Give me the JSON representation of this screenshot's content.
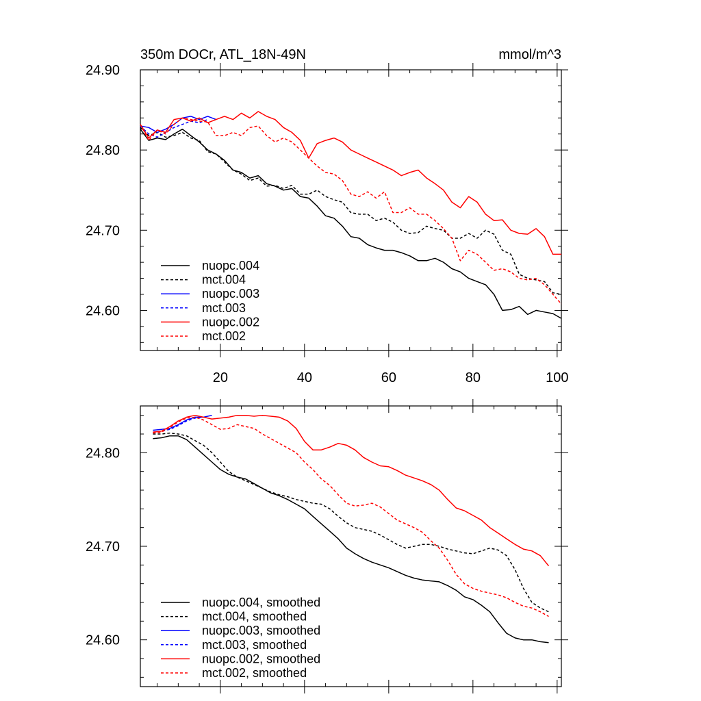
{
  "chart_data": [
    {
      "type": "line",
      "title": "350m DOCr, ATL_18N-49N",
      "units": "mmol/m^3",
      "xlim": [
        1,
        101
      ],
      "ylim": [
        24.55,
        24.9
      ],
      "x_ticks": [
        20,
        40,
        60,
        80,
        100
      ],
      "x_tick_labels": [
        "20",
        "40",
        "60",
        "80",
        "100"
      ],
      "y_ticks": [
        24.6,
        24.7,
        24.8,
        24.9
      ],
      "y_tick_labels": [
        "24.60",
        "24.70",
        "24.80",
        "24.90"
      ],
      "legend": "bottom-left",
      "series": [
        {
          "name": "nuopc.004",
          "color": "#000000",
          "dash": false,
          "x": [
            1,
            3,
            5,
            7,
            9,
            11,
            13,
            15,
            17,
            19,
            21,
            23,
            25,
            27,
            29,
            31,
            33,
            35,
            37,
            39,
            41,
            43,
            45,
            47,
            49,
            51,
            53,
            55,
            57,
            59,
            61,
            63,
            65,
            67,
            69,
            71,
            73,
            75,
            77,
            79,
            81,
            83,
            85,
            87,
            89,
            91,
            93,
            95,
            97,
            99,
            101
          ],
          "y": [
            24.826,
            24.812,
            24.815,
            24.813,
            24.82,
            24.826,
            24.818,
            24.81,
            24.8,
            24.795,
            24.787,
            24.775,
            24.772,
            24.765,
            24.768,
            24.758,
            24.755,
            24.75,
            24.752,
            24.742,
            24.74,
            24.73,
            24.718,
            24.715,
            24.705,
            24.692,
            24.69,
            24.682,
            24.678,
            24.675,
            24.675,
            24.672,
            24.668,
            24.662,
            24.662,
            24.665,
            24.66,
            24.652,
            24.648,
            24.64,
            24.636,
            24.632,
            24.62,
            24.6,
            24.601,
            24.605,
            24.595,
            24.6,
            24.598,
            24.596,
            24.59
          ]
        },
        {
          "name": "mct.004",
          "color": "#000000",
          "dash": true,
          "x": [
            1,
            3,
            5,
            7,
            9,
            11,
            13,
            15,
            17,
            19,
            21,
            23,
            25,
            27,
            29,
            31,
            33,
            35,
            37,
            39,
            41,
            43,
            45,
            47,
            49,
            51,
            53,
            55,
            57,
            59,
            61,
            63,
            65,
            67,
            69,
            71,
            73,
            75,
            77,
            79,
            81,
            83,
            85,
            87,
            89,
            91,
            93,
            95,
            97,
            99,
            101
          ],
          "y": [
            24.828,
            24.818,
            24.822,
            24.816,
            24.818,
            24.822,
            24.815,
            24.812,
            24.798,
            24.795,
            24.785,
            24.775,
            24.77,
            24.762,
            24.765,
            24.755,
            24.756,
            24.752,
            24.756,
            24.745,
            24.745,
            24.75,
            24.742,
            24.738,
            24.735,
            24.722,
            24.72,
            24.72,
            24.712,
            24.715,
            24.71,
            24.7,
            24.696,
            24.697,
            24.705,
            24.702,
            24.7,
            24.69,
            24.69,
            24.696,
            24.69,
            24.7,
            24.695,
            24.675,
            24.67,
            24.645,
            24.64,
            24.638,
            24.636,
            24.622,
            24.62
          ]
        },
        {
          "name": "nuopc.003",
          "color": "#0000ff",
          "dash": false,
          "x": [
            1,
            3,
            5,
            7,
            9,
            11,
            13,
            15,
            17,
            19
          ],
          "y": [
            24.83,
            24.828,
            24.822,
            24.826,
            24.832,
            24.84,
            24.842,
            24.838,
            24.842,
            24.838
          ]
        },
        {
          "name": "mct.003",
          "color": "#0000ff",
          "dash": true,
          "x": [
            1,
            3,
            5,
            7,
            9,
            11,
            13,
            15,
            17
          ],
          "y": [
            24.83,
            24.82,
            24.816,
            24.822,
            24.828,
            24.832,
            24.836,
            24.834,
            24.838
          ]
        },
        {
          "name": "nuopc.002",
          "color": "#ff0000",
          "dash": false,
          "x": [
            1,
            3,
            5,
            7,
            9,
            11,
            13,
            15,
            17,
            19,
            21,
            23,
            25,
            27,
            29,
            31,
            33,
            35,
            37,
            39,
            41,
            43,
            45,
            47,
            49,
            51,
            53,
            55,
            57,
            59,
            61,
            63,
            65,
            67,
            69,
            71,
            73,
            75,
            77,
            79,
            81,
            83,
            85,
            87,
            89,
            91,
            93,
            95,
            97,
            99,
            101
          ],
          "y": [
            24.832,
            24.815,
            24.825,
            24.822,
            24.838,
            24.84,
            24.836,
            24.84,
            24.834,
            24.838,
            24.842,
            24.838,
            24.846,
            24.84,
            24.848,
            24.842,
            24.838,
            24.828,
            24.822,
            24.812,
            24.79,
            24.808,
            24.812,
            24.815,
            24.81,
            24.8,
            24.795,
            24.79,
            24.785,
            24.78,
            24.775,
            24.768,
            24.772,
            24.775,
            24.765,
            24.758,
            24.75,
            24.735,
            24.728,
            24.742,
            24.735,
            24.72,
            24.712,
            24.713,
            24.7,
            24.696,
            24.695,
            24.702,
            24.692,
            24.67,
            24.67
          ]
        },
        {
          "name": "mct.002",
          "color": "#ff0000",
          "dash": true,
          "x": [
            1,
            3,
            5,
            7,
            9,
            11,
            13,
            15,
            17,
            19,
            21,
            23,
            25,
            27,
            29,
            31,
            33,
            35,
            37,
            39,
            41,
            43,
            45,
            47,
            49,
            51,
            53,
            55,
            57,
            59,
            61,
            63,
            65,
            67,
            69,
            71,
            73,
            75,
            77,
            79,
            81,
            83,
            85,
            87,
            89,
            91,
            93,
            95,
            97,
            99,
            101
          ],
          "y": [
            24.832,
            24.812,
            24.825,
            24.82,
            24.832,
            24.84,
            24.838,
            24.836,
            24.835,
            24.818,
            24.818,
            24.822,
            24.818,
            24.828,
            24.83,
            24.818,
            24.81,
            24.815,
            24.81,
            24.8,
            24.79,
            24.78,
            24.772,
            24.77,
            24.762,
            24.745,
            24.742,
            24.748,
            24.74,
            24.748,
            24.722,
            24.722,
            24.728,
            24.72,
            24.72,
            24.712,
            24.702,
            24.69,
            24.662,
            24.675,
            24.67,
            24.66,
            24.65,
            24.652,
            24.648,
            24.64,
            24.638,
            24.64,
            24.632,
            24.62,
            24.608
          ]
        }
      ]
    },
    {
      "type": "line",
      "title": "",
      "xlim": [
        1,
        101
      ],
      "ylim": [
        24.55,
        24.85
      ],
      "x_ticks": [
        20,
        40,
        60,
        80,
        100
      ],
      "y_ticks": [
        24.6,
        24.7,
        24.8
      ],
      "y_tick_labels": [
        "24.60",
        "24.70",
        "24.80"
      ],
      "legend": "bottom-left",
      "series": [
        {
          "name": "nuopc.004, smoothed",
          "color": "#000000",
          "dash": false,
          "x": [
            4,
            6,
            8,
            10,
            12,
            14,
            16,
            18,
            20,
            22,
            24,
            26,
            28,
            30,
            32,
            34,
            36,
            38,
            40,
            42,
            44,
            46,
            48,
            50,
            52,
            54,
            56,
            58,
            60,
            62,
            64,
            66,
            68,
            70,
            72,
            74,
            76,
            78,
            80,
            82,
            84,
            86,
            88,
            90,
            92,
            94,
            96,
            98
          ],
          "y": [
            24.815,
            24.816,
            24.818,
            24.818,
            24.814,
            24.806,
            24.798,
            24.79,
            24.782,
            24.777,
            24.774,
            24.772,
            24.767,
            24.762,
            24.757,
            24.754,
            24.75,
            24.745,
            24.74,
            24.732,
            24.724,
            24.716,
            24.708,
            24.698,
            24.692,
            24.687,
            24.683,
            24.68,
            24.677,
            24.673,
            24.669,
            24.666,
            24.664,
            24.663,
            24.662,
            24.658,
            24.653,
            24.646,
            24.643,
            24.637,
            24.63,
            24.618,
            24.607,
            24.602,
            24.6,
            24.6,
            24.598,
            24.597
          ]
        },
        {
          "name": "mct.004, smoothed",
          "color": "#000000",
          "dash": true,
          "x": [
            4,
            6,
            8,
            10,
            12,
            14,
            16,
            18,
            20,
            22,
            24,
            26,
            28,
            30,
            32,
            34,
            36,
            38,
            40,
            42,
            44,
            46,
            48,
            50,
            52,
            54,
            56,
            58,
            60,
            62,
            64,
            66,
            68,
            70,
            72,
            74,
            76,
            78,
            80,
            82,
            84,
            86,
            88,
            90,
            92,
            94,
            96,
            98
          ],
          "y": [
            24.82,
            24.82,
            24.821,
            24.82,
            24.818,
            24.813,
            24.808,
            24.8,
            24.79,
            24.78,
            24.774,
            24.77,
            24.766,
            24.762,
            24.758,
            24.755,
            24.753,
            24.75,
            24.748,
            24.746,
            24.745,
            24.74,
            24.732,
            24.725,
            24.72,
            24.718,
            24.716,
            24.712,
            24.707,
            24.702,
            24.698,
            24.7,
            24.702,
            24.702,
            24.7,
            24.697,
            24.695,
            24.693,
            24.692,
            24.695,
            24.698,
            24.696,
            24.69,
            24.675,
            24.655,
            24.64,
            24.634,
            24.63
          ]
        },
        {
          "name": "nuopc.003, smoothed",
          "color": "#0000ff",
          "dash": false,
          "x": [
            4,
            6,
            8,
            10,
            12,
            14,
            16,
            18
          ],
          "y": [
            24.824,
            24.825,
            24.826,
            24.83,
            24.835,
            24.838,
            24.838,
            24.84
          ]
        },
        {
          "name": "mct.003, smoothed",
          "color": "#0000ff",
          "dash": true,
          "x": [
            4,
            6,
            8,
            10,
            12,
            14,
            16
          ],
          "y": [
            24.822,
            24.823,
            24.825,
            24.829,
            24.834,
            24.837,
            24.838
          ]
        },
        {
          "name": "nuopc.002, smoothed",
          "color": "#ff0000",
          "dash": false,
          "x": [
            4,
            6,
            8,
            10,
            12,
            14,
            16,
            18,
            20,
            22,
            24,
            26,
            28,
            30,
            32,
            34,
            36,
            38,
            40,
            42,
            44,
            46,
            48,
            50,
            52,
            54,
            56,
            58,
            60,
            62,
            64,
            66,
            68,
            70,
            72,
            74,
            76,
            78,
            80,
            82,
            84,
            86,
            88,
            90,
            92,
            94,
            96,
            98
          ],
          "y": [
            24.822,
            24.823,
            24.828,
            24.834,
            24.838,
            24.84,
            24.838,
            24.836,
            24.837,
            24.838,
            24.84,
            24.84,
            24.839,
            24.84,
            24.839,
            24.838,
            24.834,
            24.826,
            24.812,
            24.803,
            24.803,
            24.806,
            24.81,
            24.808,
            24.803,
            24.795,
            24.79,
            24.786,
            24.785,
            24.781,
            24.776,
            24.773,
            24.77,
            24.766,
            24.76,
            24.75,
            24.741,
            24.738,
            24.733,
            24.728,
            24.72,
            24.714,
            24.708,
            24.702,
            24.697,
            24.695,
            24.69,
            24.679
          ]
        },
        {
          "name": "mct.002, smoothed",
          "color": "#ff0000",
          "dash": true,
          "x": [
            4,
            6,
            8,
            10,
            12,
            14,
            16,
            18,
            20,
            22,
            24,
            26,
            28,
            30,
            32,
            34,
            36,
            38,
            40,
            42,
            44,
            46,
            48,
            50,
            52,
            54,
            56,
            58,
            60,
            62,
            64,
            66,
            68,
            70,
            72,
            74,
            76,
            78,
            80,
            82,
            84,
            86,
            88,
            90,
            92,
            94,
            96,
            98
          ],
          "y": [
            24.821,
            24.822,
            24.827,
            24.833,
            24.837,
            24.838,
            24.835,
            24.83,
            24.825,
            24.826,
            24.83,
            24.828,
            24.826,
            24.82,
            24.815,
            24.81,
            24.805,
            24.8,
            24.79,
            24.782,
            24.772,
            24.765,
            24.755,
            24.746,
            24.743,
            24.744,
            24.746,
            24.742,
            24.735,
            24.728,
            24.724,
            24.72,
            24.715,
            24.706,
            24.698,
            24.685,
            24.67,
            24.66,
            24.655,
            24.652,
            24.65,
            24.648,
            24.645,
            24.64,
            24.636,
            24.634,
            24.63,
            24.625
          ]
        }
      ]
    }
  ]
}
